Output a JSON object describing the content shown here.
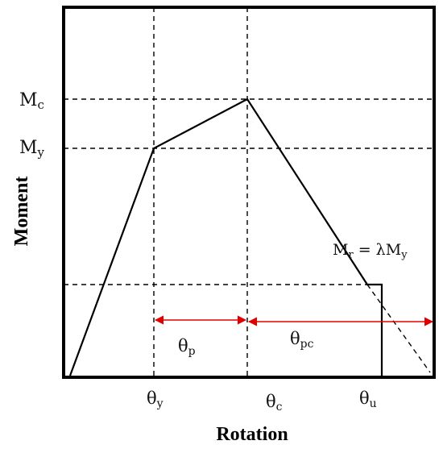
{
  "diagram": {
    "ylabel": "Moment",
    "xlabel": "Rotation",
    "y_labels": {
      "mc_main": "M",
      "mc_sub": "c",
      "my_main": "M",
      "my_sub": "y"
    },
    "x_labels": {
      "ty_main": "θ",
      "ty_sub": "y",
      "tc_main": "θ",
      "tc_sub": "c",
      "tu_main": "θ",
      "tu_sub": "u"
    },
    "interval_labels": {
      "tp_main": "θ",
      "tp_sub": "p",
      "tpc_main": "θ",
      "tpc_sub": "pc"
    },
    "residual": {
      "lhs_main": "M",
      "lhs_sub": "r",
      "rhs_main": " = λM",
      "rhs_sub": "y"
    },
    "colors": {
      "curve": "#000000",
      "guides": "#000000",
      "arrows": "#e00000"
    }
  }
}
